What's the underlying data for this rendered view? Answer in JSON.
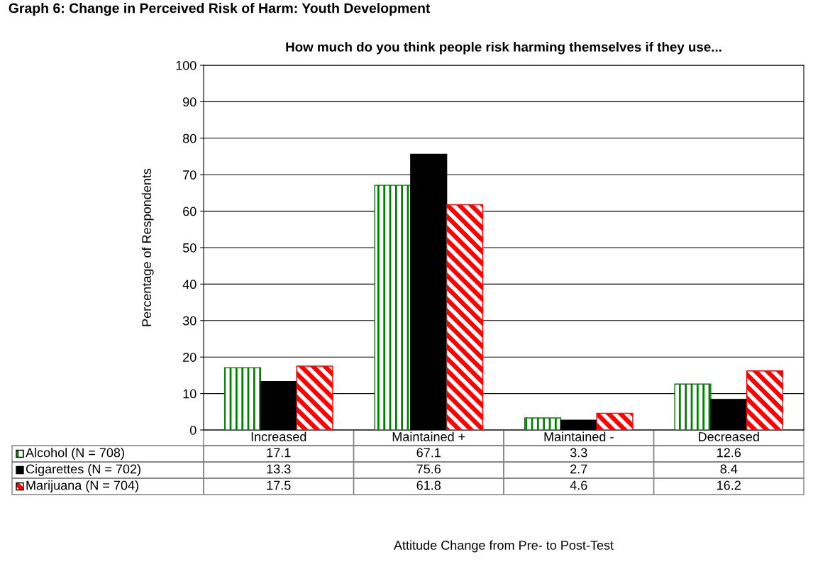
{
  "chart_data": {
    "type": "bar",
    "title": "Graph 6: Change in Perceived Risk of Harm: Youth Development",
    "subtitle": "How much do you think people risk harming themselves if they use...",
    "annotations": [
      "Attitude Change from Pre- to Post-Test"
    ],
    "ylabel": "Percentage of Respondents",
    "categories": [
      "Increased",
      "Maintained +",
      "Maintained -",
      "Decreased"
    ],
    "series": [
      {
        "name": "Alcohol (N = 708)",
        "color": "#008000",
        "values": [
          17.1,
          67.1,
          3.3,
          12.6
        ]
      },
      {
        "name": "Cigarettes (N = 702)",
        "color": "#000000",
        "values": [
          13.3,
          75.6,
          2.7,
          8.4
        ]
      },
      {
        "name": "Marijuana (N = 704)",
        "color": "#ff0000",
        "values": [
          17.5,
          61.8,
          4.6,
          16.2
        ]
      }
    ],
    "ylim": [
      0,
      100
    ],
    "yticks": [
      0,
      10,
      20,
      30,
      40,
      50,
      60,
      70,
      80,
      90,
      100
    ],
    "grid": "y",
    "data_labels": true,
    "legend": "bottom left"
  }
}
